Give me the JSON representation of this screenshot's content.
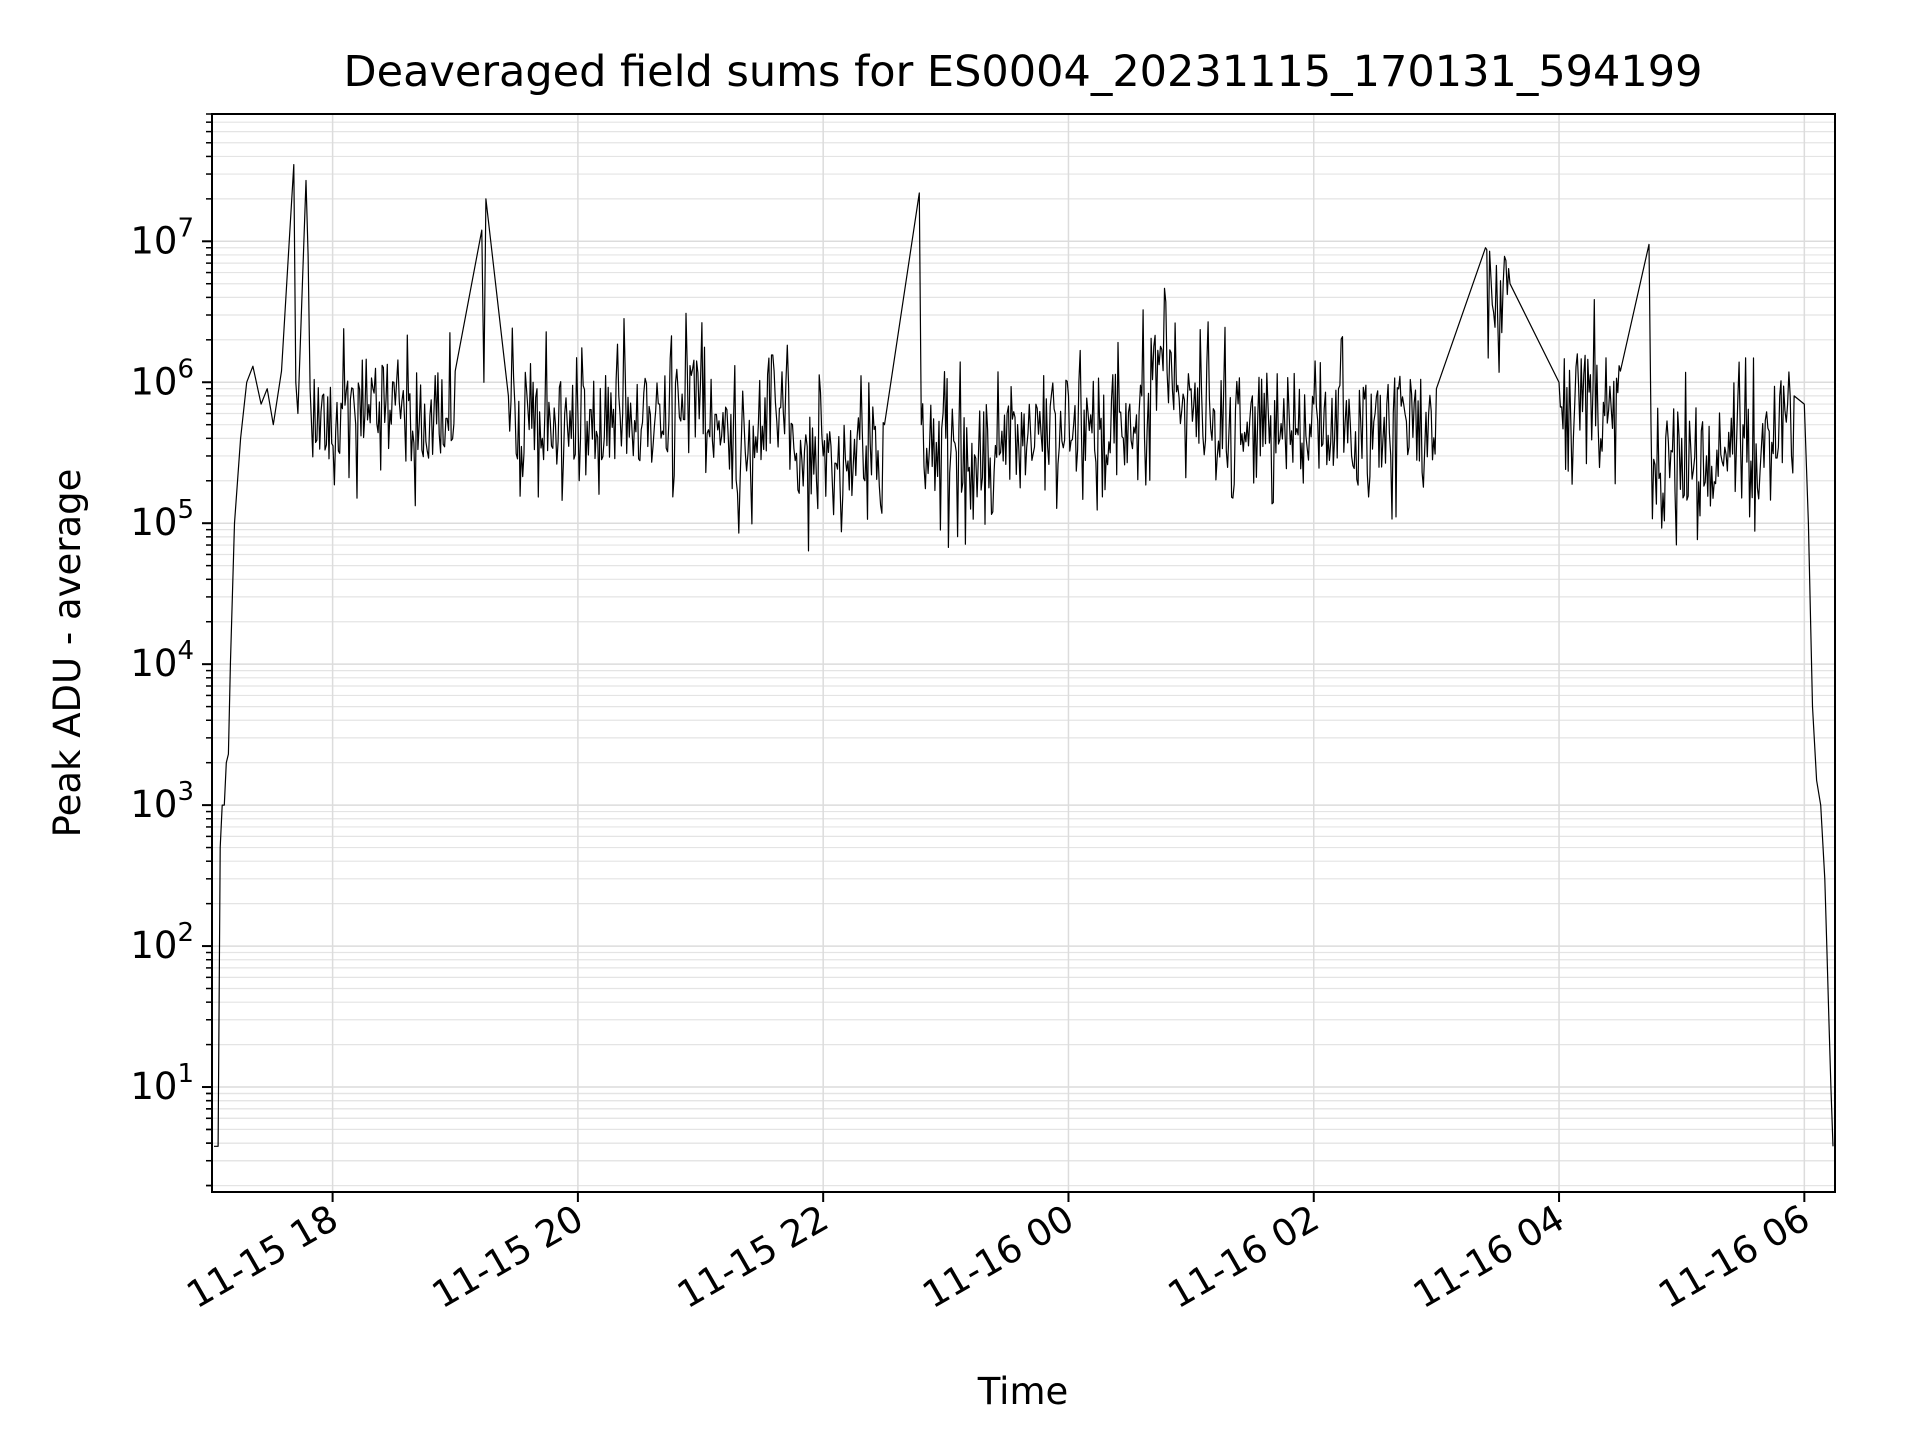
{
  "chart_data": {
    "type": "line",
    "title": "Deaveraged field sums for ES0004_20231115_170131_594199",
    "xlabel": "Time",
    "ylabel": "Peak ADU - average",
    "yscale": "log",
    "ylim": [
      1.8,
      80000000
    ],
    "xlim": [
      "2023-11-15 17:01",
      "2023-11-16 06:15"
    ],
    "grid": true,
    "x_ticks": [
      {
        "label": "11-15 18",
        "t": "2023-11-15 18:00"
      },
      {
        "label": "11-15 20",
        "t": "2023-11-15 20:00"
      },
      {
        "label": "11-15 22",
        "t": "2023-11-15 22:00"
      },
      {
        "label": "11-16 00",
        "t": "2023-11-16 00:00"
      },
      {
        "label": "11-16 02",
        "t": "2023-11-16 02:00"
      },
      {
        "label": "11-16 04",
        "t": "2023-11-16 04:00"
      },
      {
        "label": "11-16 06",
        "t": "2023-11-16 06:00"
      }
    ],
    "y_ticks": [
      {
        "base": "10",
        "exp": "1",
        "value": 10
      },
      {
        "base": "10",
        "exp": "2",
        "value": 100
      },
      {
        "base": "10",
        "exp": "3",
        "value": 1000
      },
      {
        "base": "10",
        "exp": "4",
        "value": 10000
      },
      {
        "base": "10",
        "exp": "5",
        "value": 100000
      },
      {
        "base": "10",
        "exp": "6",
        "value": 1000000
      },
      {
        "base": "10",
        "exp": "7",
        "value": 10000000
      }
    ],
    "line_color": "#000000",
    "series": [
      {
        "x": [
          "2023-11-15 17:02",
          "2023-11-15 17:03",
          "2023-11-15 17:04",
          "2023-11-15 17:05",
          "2023-11-15 17:06",
          "2023-11-15 17:07",
          "2023-11-15 17:08",
          "2023-11-15 17:09",
          "2023-11-15 17:10",
          "2023-11-15 17:12",
          "2023-11-15 17:15",
          "2023-11-15 17:18",
          "2023-11-15 17:21",
          "2023-11-15 17:25",
          "2023-11-15 17:28",
          "2023-11-15 17:31",
          "2023-11-15 17:35",
          "2023-11-15 17:41",
          "2023-11-15 17:42",
          "2023-11-15 17:43",
          "2023-11-15 17:47",
          "2023-11-15 17:48",
          "2023-11-15 17:49",
          "2023-11-15 17:55",
          "2023-11-15 18:10",
          "2023-11-15 18:30",
          "2023-11-15 18:45",
          "2023-11-15 19:00",
          "2023-11-15 19:13",
          "2023-11-15 19:14",
          "2023-11-15 19:15",
          "2023-11-15 19:26",
          "2023-11-15 19:40",
          "2023-11-15 20:00",
          "2023-11-15 20:20",
          "2023-11-15 20:40",
          "2023-11-15 21:00",
          "2023-11-15 21:20",
          "2023-11-15 21:36",
          "2023-11-15 21:45",
          "2023-11-15 22:00",
          "2023-11-15 22:30",
          "2023-11-15 22:47",
          "2023-11-15 22:48",
          "2023-11-15 23:00",
          "2023-11-15 23:30",
          "2023-11-16 00:00",
          "2023-11-16 00:30",
          "2023-11-16 00:45",
          "2023-11-16 01:00",
          "2023-11-16 01:30",
          "2023-11-16 02:00",
          "2023-11-16 02:30",
          "2023-11-16 03:00",
          "2023-11-16 03:24",
          "2023-11-16 03:36",
          "2023-11-16 04:00",
          "2023-11-16 04:30",
          "2023-11-16 04:44",
          "2023-11-16 04:45",
          "2023-11-16 05:00",
          "2023-11-16 05:30",
          "2023-11-16 05:55",
          "2023-11-16 06:00",
          "2023-11-16 06:02",
          "2023-11-16 06:04",
          "2023-11-16 06:06",
          "2023-11-16 06:08",
          "2023-11-16 06:10",
          "2023-11-16 06:11",
          "2023-11-16 06:12",
          "2023-11-16 06:13",
          "2023-11-16 06:14"
        ],
        "y": [
          3.8,
          3.8,
          3.8,
          500,
          1000,
          1000,
          2000,
          2300,
          10000,
          100000,
          400000,
          1000000,
          1300000,
          700000,
          900000,
          500000,
          1200000,
          35000000,
          1000000,
          600000,
          27000000,
          8000000,
          900000,
          800000,
          900000,
          1000000,
          700000,
          1200000,
          12000000,
          1000000,
          20000000,
          800000,
          900000,
          600000,
          800000,
          700000,
          1000000,
          400000,
          1200000,
          500000,
          300000,
          500000,
          22000000,
          500000,
          400000,
          600000,
          800000,
          700000,
          1800000,
          900000,
          800000,
          700000,
          600000,
          900000,
          9000000,
          5000000,
          1000000,
          1200000,
          9500000,
          500000,
          400000,
          500000,
          800000,
          700000,
          100000,
          5000,
          1500,
          1000,
          300,
          100,
          30,
          10,
          3.8
        ]
      }
    ]
  }
}
